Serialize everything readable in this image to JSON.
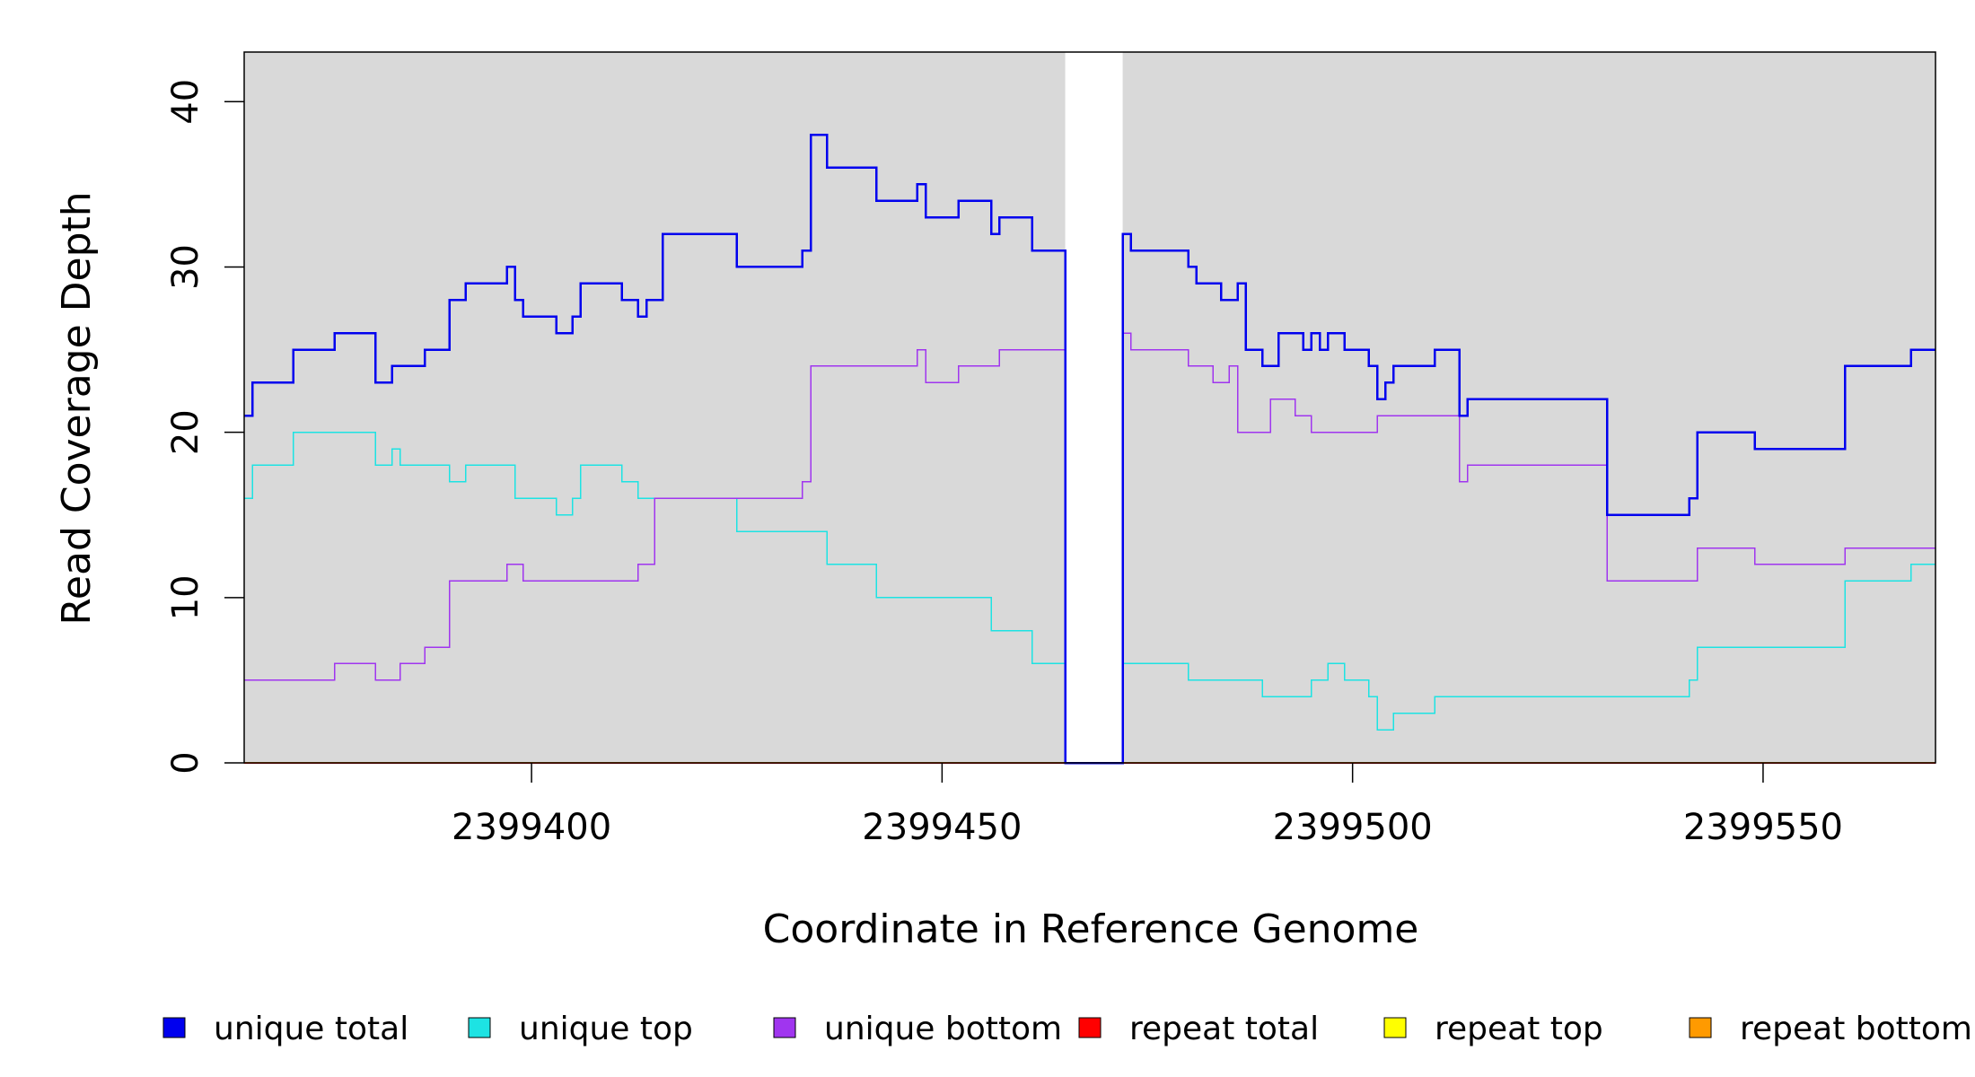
{
  "chart_data": {
    "type": "line",
    "step": true,
    "xlabel": "Coordinate in Reference Genome",
    "ylabel": "Read Coverage Depth",
    "xlim": [
      2399365,
      2399571
    ],
    "ylim": [
      0,
      43
    ],
    "xticks": [
      2399400,
      2399450,
      2399500,
      2399550
    ],
    "xtick_labels": [
      "2399400",
      "2399450",
      "2399500",
      "2399550"
    ],
    "yticks": [
      0,
      10,
      20,
      30,
      40
    ],
    "ytick_labels": [
      "0",
      "10",
      "20",
      "30",
      "40"
    ],
    "background_color": "#d9d9d9",
    "gap_region": [
      2399465,
      2399472
    ],
    "legend_position": "bottom",
    "series": [
      {
        "name": "unique total",
        "color": "#0000ee",
        "width": 2.5,
        "points": [
          [
            2399365,
            21
          ],
          [
            2399366,
            23
          ],
          [
            2399371,
            25
          ],
          [
            2399376,
            26
          ],
          [
            2399381,
            23
          ],
          [
            2399383,
            24
          ],
          [
            2399387,
            25
          ],
          [
            2399390,
            28
          ],
          [
            2399392,
            29
          ],
          [
            2399397,
            30
          ],
          [
            2399398,
            28
          ],
          [
            2399399,
            27
          ],
          [
            2399403,
            26
          ],
          [
            2399405,
            27
          ],
          [
            2399406,
            29
          ],
          [
            2399411,
            28
          ],
          [
            2399413,
            27
          ],
          [
            2399414,
            28
          ],
          [
            2399416,
            32
          ],
          [
            2399425,
            30
          ],
          [
            2399433,
            31
          ],
          [
            2399434,
            38
          ],
          [
            2399436,
            36
          ],
          [
            2399442,
            34
          ],
          [
            2399447,
            35
          ],
          [
            2399448,
            33
          ],
          [
            2399452,
            34
          ],
          [
            2399456,
            32
          ],
          [
            2399457,
            33
          ],
          [
            2399461,
            31
          ],
          [
            2399465,
            0
          ],
          [
            2399472,
            32
          ],
          [
            2399473,
            31
          ],
          [
            2399480,
            30
          ],
          [
            2399481,
            29
          ],
          [
            2399484,
            28
          ],
          [
            2399486,
            29
          ],
          [
            2399487,
            25
          ],
          [
            2399489,
            24
          ],
          [
            2399491,
            26
          ],
          [
            2399494,
            25
          ],
          [
            2399495,
            26
          ],
          [
            2399496,
            25
          ],
          [
            2399497,
            26
          ],
          [
            2399499,
            25
          ],
          [
            2399502,
            24
          ],
          [
            2399503,
            22
          ],
          [
            2399504,
            23
          ],
          [
            2399505,
            24
          ],
          [
            2399510,
            25
          ],
          [
            2399513,
            21
          ],
          [
            2399514,
            22
          ],
          [
            2399531,
            15
          ],
          [
            2399541,
            16
          ],
          [
            2399542,
            20
          ],
          [
            2399549,
            19
          ],
          [
            2399560,
            24
          ],
          [
            2399568,
            25
          ],
          [
            2399571,
            25
          ]
        ]
      },
      {
        "name": "unique top",
        "color": "#1de3e3",
        "width": 1.5,
        "points": [
          [
            2399365,
            16
          ],
          [
            2399366,
            18
          ],
          [
            2399371,
            20
          ],
          [
            2399381,
            18
          ],
          [
            2399383,
            19
          ],
          [
            2399384,
            18
          ],
          [
            2399390,
            17
          ],
          [
            2399392,
            18
          ],
          [
            2399398,
            16
          ],
          [
            2399403,
            15
          ],
          [
            2399405,
            16
          ],
          [
            2399406,
            18
          ],
          [
            2399411,
            17
          ],
          [
            2399413,
            16
          ],
          [
            2399425,
            14
          ],
          [
            2399436,
            12
          ],
          [
            2399442,
            10
          ],
          [
            2399456,
            8
          ],
          [
            2399461,
            6
          ],
          [
            2399465,
            0
          ],
          [
            2399472,
            6
          ],
          [
            2399480,
            5
          ],
          [
            2399489,
            4
          ],
          [
            2399495,
            5
          ],
          [
            2399497,
            6
          ],
          [
            2399499,
            5
          ],
          [
            2399502,
            4
          ],
          [
            2399503,
            2
          ],
          [
            2399505,
            3
          ],
          [
            2399510,
            4
          ],
          [
            2399541,
            5
          ],
          [
            2399542,
            7
          ],
          [
            2399560,
            11
          ],
          [
            2399568,
            12
          ],
          [
            2399571,
            12
          ]
        ]
      },
      {
        "name": "unique bottom",
        "color": "#a035ef",
        "width": 1.5,
        "points": [
          [
            2399365,
            5
          ],
          [
            2399376,
            6
          ],
          [
            2399381,
            5
          ],
          [
            2399384,
            6
          ],
          [
            2399387,
            7
          ],
          [
            2399390,
            11
          ],
          [
            2399397,
            12
          ],
          [
            2399399,
            11
          ],
          [
            2399413,
            12
          ],
          [
            2399415,
            16
          ],
          [
            2399433,
            17
          ],
          [
            2399434,
            24
          ],
          [
            2399447,
            25
          ],
          [
            2399448,
            23
          ],
          [
            2399452,
            24
          ],
          [
            2399457,
            25
          ],
          [
            2399465,
            0
          ],
          [
            2399472,
            26
          ],
          [
            2399473,
            25
          ],
          [
            2399480,
            24
          ],
          [
            2399483,
            23
          ],
          [
            2399485,
            24
          ],
          [
            2399486,
            20
          ],
          [
            2399490,
            22
          ],
          [
            2399493,
            21
          ],
          [
            2399495,
            20
          ],
          [
            2399503,
            21
          ],
          [
            2399513,
            17
          ],
          [
            2399514,
            18
          ],
          [
            2399531,
            11
          ],
          [
            2399542,
            13
          ],
          [
            2399549,
            12
          ],
          [
            2399560,
            13
          ],
          [
            2399571,
            13
          ]
        ]
      },
      {
        "name": "repeat total",
        "color": "#ff0000",
        "width": 1.5,
        "points": [
          [
            2399365,
            0
          ],
          [
            2399571,
            0
          ]
        ]
      },
      {
        "name": "repeat top",
        "color": "#ffff00",
        "width": 1.5,
        "points": [
          [
            2399365,
            0
          ],
          [
            2399571,
            0
          ]
        ]
      },
      {
        "name": "repeat bottom",
        "color": "#ff9a00",
        "width": 2,
        "points": [
          [
            2399365,
            0
          ],
          [
            2399571,
            0
          ]
        ]
      }
    ]
  }
}
